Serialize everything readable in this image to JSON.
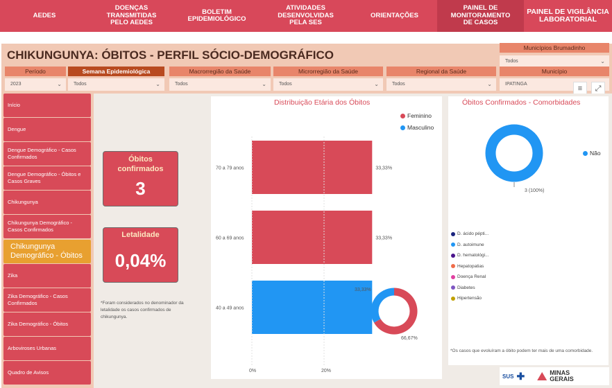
{
  "nav": [
    {
      "label": "AEDES"
    },
    {
      "label": "DOENÇAS TRANSMITIDAS PELO AEDES"
    },
    {
      "label": "BOLETIM EPIDEMIOLÓGICO"
    },
    {
      "label": "ATIVIDADES DESENVOLVIDAS PELA SES"
    },
    {
      "label": "ORIENTAÇÕES"
    },
    {
      "label": "PAINEL DE MONITORAMENTO DE CASOS"
    },
    {
      "label": "PAINEL DE VIGILÂNCIA LABORATORIAL"
    }
  ],
  "page_title": "CHIKUNGUNYA: ÓBITOS - PERFIL SÓCIO-DEMOGRÁFICO",
  "filters": {
    "municipios_brumadinho": {
      "label": "Municípios Brumadinho",
      "value": "Todos"
    },
    "periodo": {
      "label": "Período",
      "value": "2023"
    },
    "semana": {
      "label": "Semana Epidemiológica",
      "value": "Todos"
    },
    "macrorregiao": {
      "label": "Macrorregião da Saúde",
      "value": "Todos"
    },
    "microrregiao": {
      "label": "Microrregião da Saúde",
      "value": "Todos"
    },
    "regional": {
      "label": "Regional da Saúde",
      "value": "Todos"
    },
    "municipio": {
      "label": "Município",
      "value": "IPATINGA"
    }
  },
  "sidebar": [
    {
      "label": "Início"
    },
    {
      "label": "Dengue"
    },
    {
      "label": "Dengue Demográfico - Casos Confirmados"
    },
    {
      "label": "Dengue Demográfico - Óbitos e Casos Graves"
    },
    {
      "label": "Chikungunya"
    },
    {
      "label": "Chikungunya Demográfico - Casos Confirmados"
    },
    {
      "label": "Chikungunya Demográfico - Óbitos"
    },
    {
      "label": "Zika"
    },
    {
      "label": "Zika Demográfico - Casos Confirmados"
    },
    {
      "label": "Zika Demográfico - Óbitos"
    },
    {
      "label": "Arboviroses Urbanas"
    },
    {
      "label": "Quadro de Avisos"
    }
  ],
  "kpis": {
    "obitos": {
      "title": "Óbitos confirmados",
      "value": "3"
    },
    "letalidade": {
      "title": "Letalidade",
      "value": "0,04%"
    }
  },
  "footnote_left": "*Foram considerados no denominador da letalidade os casos confirmados de chikungunya.",
  "footnote_right": "*Os casos que evoluíram a óbito podem ter mais de uma comorbidade.",
  "colors": {
    "feminino": "#d84a58",
    "masculino": "#2196f3",
    "accent": "#d84a58",
    "active_side": "#e8a030"
  },
  "chart_data": [
    {
      "type": "bar",
      "title": "Distribuição Etária dos Óbitos",
      "orientation": "horizontal",
      "categories": [
        "70 a 79 anos",
        "60 a 69 anos",
        "40 a 49 anos"
      ],
      "series": [
        {
          "name": "Feminino",
          "values": [
            33.33,
            33.33,
            0
          ]
        },
        {
          "name": "Masculino",
          "values": [
            0,
            0,
            33.33
          ]
        }
      ],
      "data_labels": [
        "33,33%",
        "33,33%",
        "33,33%"
      ],
      "x_ticks": [
        "0%",
        "20%"
      ],
      "xlim": [
        0,
        40
      ],
      "legend": "top-right"
    },
    {
      "type": "pie",
      "title": "",
      "labels": [
        "Feminino",
        "Masculino"
      ],
      "values": [
        66.67,
        33.33
      ],
      "data_labels": [
        "66,67%",
        "33,33%"
      ]
    },
    {
      "type": "pie",
      "title": "Óbitos Confirmados - Comorbidades",
      "labels": [
        "Não"
      ],
      "values": [
        3
      ],
      "data_labels": [
        "3 (100%)"
      ],
      "legend": "right",
      "comorbidity_legend": [
        {
          "label": "D. ácido pépti...",
          "color": "#1a237e"
        },
        {
          "label": "D. autoimune",
          "color": "#2196f3"
        },
        {
          "label": "D. hematológi...",
          "color": "#4a148c"
        },
        {
          "label": "Hepatopatias",
          "color": "#ef6c4a"
        },
        {
          "label": "Doença Renal",
          "color": "#e040a0"
        },
        {
          "label": "Diabetes",
          "color": "#7e57c2"
        },
        {
          "label": "Hipertensão",
          "color": "#c0a000"
        }
      ]
    }
  ],
  "logos": {
    "sus": "SUS",
    "minas": "MINAS GERAIS"
  }
}
